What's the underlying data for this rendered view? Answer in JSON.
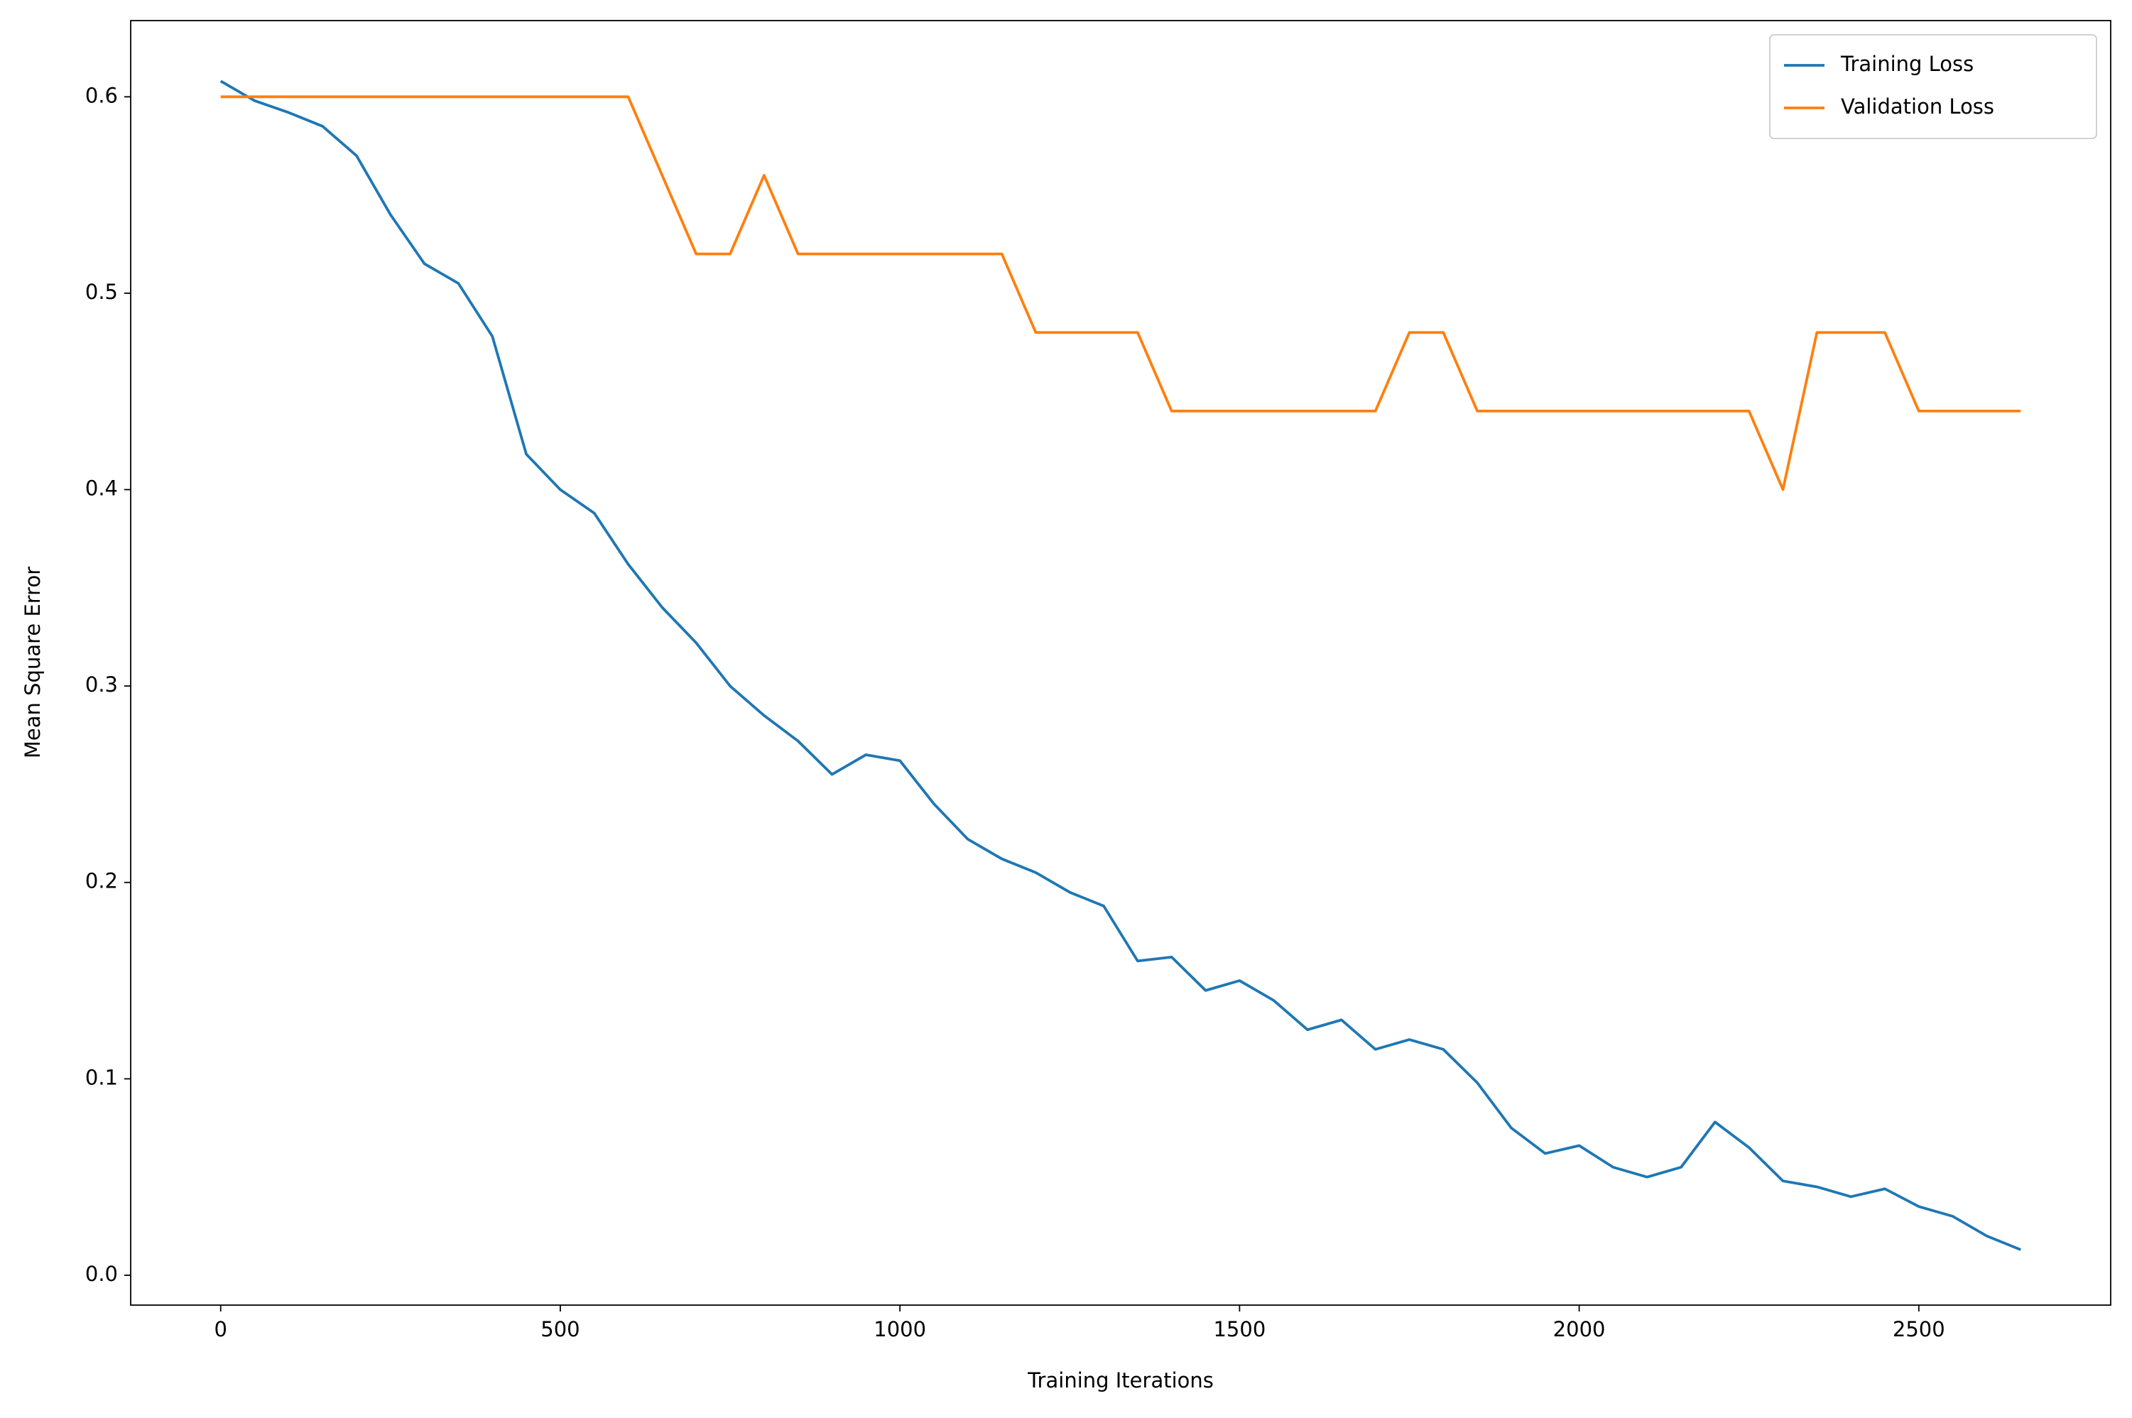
{
  "chart_data": {
    "type": "line",
    "xlabel": "Training Iterations",
    "ylabel": "Mean Square Error",
    "x": [
      0,
      50,
      100,
      150,
      200,
      250,
      300,
      350,
      400,
      450,
      500,
      550,
      600,
      650,
      700,
      750,
      800,
      850,
      900,
      950,
      1000,
      1050,
      1100,
      1150,
      1200,
      1250,
      1300,
      1350,
      1400,
      1450,
      1500,
      1550,
      1600,
      1650,
      1700,
      1750,
      1800,
      1850,
      1900,
      1950,
      2000,
      2050,
      2100,
      2150,
      2200,
      2250,
      2300,
      2350,
      2400,
      2450,
      2500,
      2550,
      2600,
      2650
    ],
    "series": [
      {
        "name": "Training Loss",
        "color": "#1f77b4",
        "values": [
          0.608,
          0.598,
          0.592,
          0.585,
          0.57,
          0.54,
          0.515,
          0.505,
          0.478,
          0.418,
          0.4,
          0.388,
          0.362,
          0.34,
          0.322,
          0.3,
          0.285,
          0.272,
          0.255,
          0.265,
          0.262,
          0.24,
          0.222,
          0.212,
          0.205,
          0.195,
          0.188,
          0.16,
          0.162,
          0.145,
          0.15,
          0.14,
          0.125,
          0.13,
          0.115,
          0.12,
          0.115,
          0.098,
          0.075,
          0.062,
          0.066,
          0.055,
          0.05,
          0.055,
          0.078,
          0.065,
          0.048,
          0.045,
          0.04,
          0.044,
          0.035,
          0.03,
          0.02,
          0.013
        ]
      },
      {
        "name": "Validation Loss",
        "color": "#ff7f0e",
        "values": [
          0.6,
          0.6,
          0.6,
          0.6,
          0.6,
          0.6,
          0.6,
          0.6,
          0.6,
          0.6,
          0.6,
          0.6,
          0.6,
          0.56,
          0.52,
          0.52,
          0.56,
          0.52,
          0.52,
          0.52,
          0.52,
          0.52,
          0.52,
          0.52,
          0.48,
          0.48,
          0.48,
          0.48,
          0.44,
          0.44,
          0.44,
          0.44,
          0.44,
          0.44,
          0.44,
          0.48,
          0.48,
          0.44,
          0.44,
          0.44,
          0.44,
          0.44,
          0.44,
          0.44,
          0.44,
          0.44,
          0.4,
          0.48,
          0.48,
          0.48,
          0.44,
          0.44,
          0.44,
          0.44
        ]
      }
    ],
    "xlim": [
      -132.5,
      2782.5
    ],
    "ylim": [
      -0.0152,
      0.6388
    ],
    "xticks": [
      0,
      500,
      1000,
      1500,
      2000,
      2500
    ],
    "yticks": [
      {
        "value": 0,
        "label": "0.0"
      },
      0.1,
      0.2,
      0.3,
      0.4,
      0.5,
      0.6
    ],
    "grid": false,
    "legend": "upper right"
  }
}
